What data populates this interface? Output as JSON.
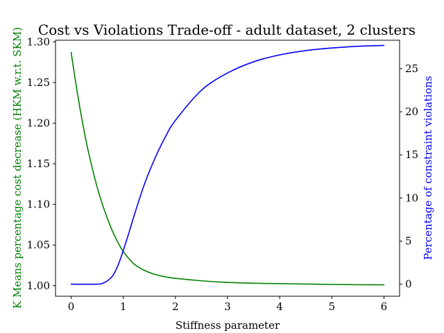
{
  "chart_data": {
    "type": "line",
    "title": "Cost vs Violations Trade-off - adult dataset, 2 clusters",
    "xlabel": "Stiffness parameter",
    "ylabel_left": "K Means percentage cost decrease (HKM w.r.t. SKM)",
    "ylabel_right": "Percentage of constraint violations",
    "xlim": [
      -0.3,
      6.3
    ],
    "ylim_left": [
      0.987,
      1.302
    ],
    "ylim_right": [
      -1.4,
      28.3
    ],
    "x_ticks": [
      0,
      1,
      2,
      3,
      4,
      5,
      6
    ],
    "y_left_ticks": [
      1.0,
      1.05,
      1.1,
      1.15,
      1.2,
      1.25,
      1.3
    ],
    "y_left_tick_labels": [
      "1.00",
      "1.05",
      "1.10",
      "1.15",
      "1.20",
      "1.25",
      "1.30"
    ],
    "y_right_ticks": [
      0,
      5,
      10,
      15,
      20,
      25
    ],
    "grid": false,
    "colors": {
      "left": "#008000",
      "right": "#0000ff"
    },
    "series": [
      {
        "axis": "left",
        "color": "#008000",
        "x": [
          0,
          0.1,
          0.2,
          0.3,
          0.4,
          0.5,
          0.6,
          0.7,
          0.8,
          0.9,
          1.0,
          1.2,
          1.4,
          1.6,
          1.8,
          2.0,
          2.5,
          3.0,
          3.5,
          4.0,
          4.5,
          5.0,
          5.5,
          6.0
        ],
        "y": [
          1.287,
          1.245,
          1.207,
          1.174,
          1.146,
          1.121,
          1.1,
          1.082,
          1.066,
          1.053,
          1.042,
          1.027,
          1.019,
          1.014,
          1.011,
          1.009,
          1.006,
          1.004,
          1.003,
          1.0025,
          1.002,
          1.0015,
          1.0012,
          1.001
        ]
      },
      {
        "axis": "right",
        "color": "#0000ff",
        "x": [
          0,
          0.5,
          0.6,
          0.7,
          0.8,
          0.9,
          1.0,
          1.1,
          1.2,
          1.4,
          1.6,
          1.8,
          2.0,
          2.5,
          3.0,
          3.5,
          4.0,
          4.5,
          5.0,
          5.5,
          6.0
        ],
        "y": [
          0,
          0,
          0.1,
          0.4,
          1.0,
          2.2,
          3.9,
          5.8,
          7.8,
          11.5,
          14.5,
          17.0,
          19.0,
          22.5,
          24.5,
          25.8,
          26.6,
          27.1,
          27.4,
          27.6,
          27.7
        ]
      }
    ]
  }
}
